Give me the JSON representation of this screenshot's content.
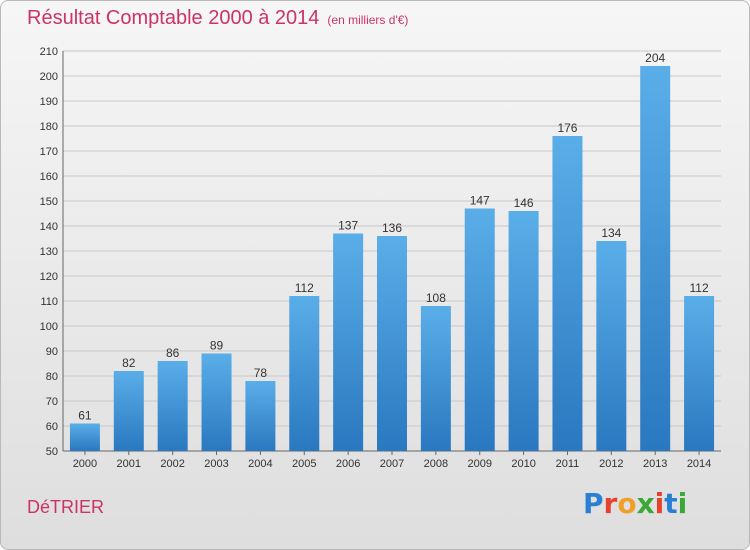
{
  "header": {
    "title": "Résultat Comptable 2000 à 2014",
    "subtitle": "(en milliers d'€)"
  },
  "footer": {
    "town": "DéTRIER",
    "logo_letters": [
      "P",
      "r",
      "o",
      "x",
      "i",
      "t",
      "i"
    ],
    "logo_colors": [
      "#2a7fd4",
      "#e8402f",
      "#f0a02a",
      "#3aa835",
      "#e8402f",
      "#2a7fd4",
      "#3aa835"
    ]
  },
  "chart_data": {
    "type": "bar",
    "title": "Résultat Comptable 2000 à 2014",
    "categories": [
      "2000",
      "2001",
      "2002",
      "2003",
      "2004",
      "2005",
      "2006",
      "2007",
      "2008",
      "2009",
      "2010",
      "2011",
      "2012",
      "2013",
      "2014"
    ],
    "values": [
      61,
      82,
      86,
      89,
      78,
      112,
      137,
      136,
      108,
      147,
      146,
      176,
      134,
      204,
      112
    ],
    "ylim": [
      50,
      210
    ],
    "yticks": [
      50,
      60,
      70,
      80,
      90,
      100,
      110,
      120,
      130,
      140,
      150,
      160,
      170,
      180,
      190,
      200,
      210
    ],
    "grid": true,
    "bar_color_top": "#5aaee8",
    "bar_color_bottom": "#2a78c0"
  }
}
